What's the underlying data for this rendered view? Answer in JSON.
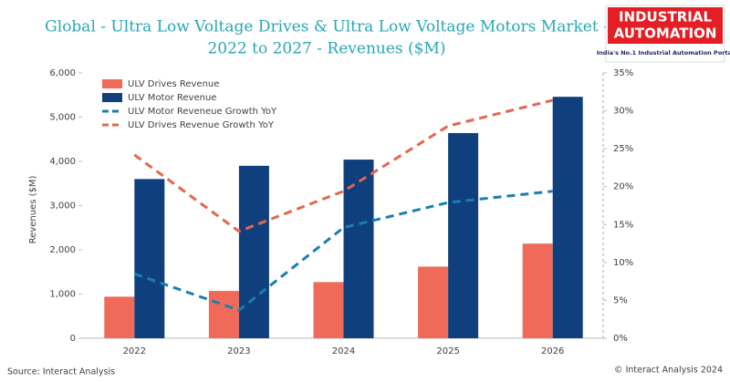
{
  "chart_data": {
    "type": "bar_line",
    "title": "Global - Ultra Low Voltage Drives & Ultra Low Voltage Motors Market -",
    "subtitle": "2022 to 2027 - Revenues ($M)",
    "y_label": "Revenues ($M)",
    "categories": [
      "2022",
      "2023",
      "2024",
      "2025",
      "2026"
    ],
    "series": [
      {
        "name": "ULV Drives Revenue",
        "type": "bar",
        "color": "#ef6a58",
        "values": [
          940,
          1070,
          1270,
          1620,
          2140
        ]
      },
      {
        "name": "ULV Motor Revenue",
        "type": "bar",
        "color": "#0f3f7c",
        "values": [
          3600,
          3900,
          4040,
          4640,
          5460
        ]
      },
      {
        "name": "ULV Motor Reveneue Growth YoY",
        "type": "line",
        "axis": "y2",
        "color": "#1a7fb0",
        "values": [
          8.5,
          3.7,
          14.6,
          17.9,
          19.4
        ]
      },
      {
        "name": "ULV Drives Revenue Growth YoY",
        "type": "line",
        "axis": "y2",
        "color": "#e3674f",
        "values": [
          24.2,
          14.1,
          19.4,
          28,
          31.4
        ]
      }
    ],
    "ylim": [
      0,
      6000
    ],
    "yticks": [
      0,
      {
        "value": 1000,
        "label": "1,000"
      },
      {
        "value": 2000,
        "label": "2,000"
      },
      {
        "value": 3000,
        "label": "3,000"
      },
      {
        "value": 4000,
        "label": "4,000"
      },
      {
        "value": 5000,
        "label": "5,000"
      },
      {
        "value": 6000,
        "label": "6,000"
      }
    ],
    "y2lim": [
      0,
      35
    ],
    "y2ticks": [
      {
        "value": 0,
        "label": "0%"
      },
      {
        "value": 5,
        "label": "5%"
      },
      {
        "value": 10,
        "label": "10%"
      },
      {
        "value": 15,
        "label": "15%"
      },
      {
        "value": 20,
        "label": "20%"
      },
      {
        "value": 25,
        "label": "25%"
      },
      {
        "value": 30,
        "label": "30%"
      },
      {
        "value": 35,
        "label": "35%"
      }
    ],
    "legend": "top-left"
  },
  "logo": {
    "line1": "INDUSTRIAL",
    "line2": "AUTOMATION",
    "tagline": "India's No.1 Industrial Automation Portal"
  },
  "source": "Source: Interact Analysis",
  "copyright": "© Interact Analysis 2024"
}
